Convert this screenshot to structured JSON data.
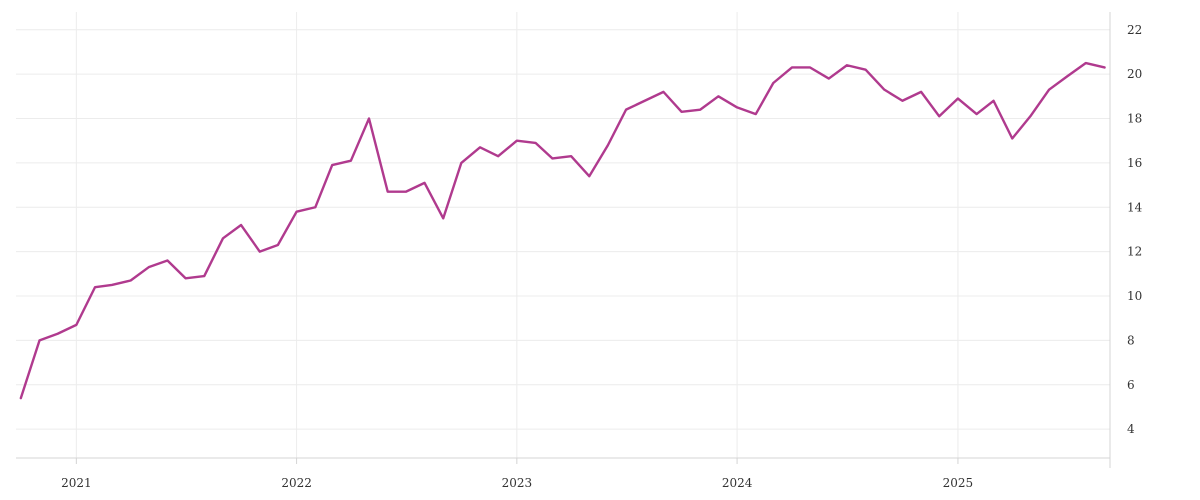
{
  "chart_data": {
    "type": "line",
    "title": "",
    "xlabel": "",
    "ylabel": "",
    "colors": {
      "line": "#b03a8e",
      "grid": "#ececec",
      "axis": "#d4d4d4",
      "text": "#333333"
    },
    "grid": true,
    "legend": "none",
    "y_axis_position": "right",
    "ylim": [
      2.7,
      22.8
    ],
    "xlim": [
      "2020-09-23",
      "2025-09-10"
    ],
    "x_ticks": [
      "2021-01-01",
      "2022-01-01",
      "2023-01-01",
      "2024-01-01",
      "2025-01-01"
    ],
    "x_tick_labels": [
      "2021",
      "2022",
      "2023",
      "2024",
      "2025"
    ],
    "y_ticks": [
      4,
      6,
      8,
      10,
      12,
      14,
      16,
      18,
      20,
      22
    ],
    "y_tick_labels": [
      "4",
      "6",
      "8",
      "10",
      "12",
      "14",
      "16",
      "18",
      "20",
      "22"
    ],
    "series": [
      {
        "x": [
          "2020-10-01",
          "2020-11-01",
          "2020-12-01",
          "2021-01-01",
          "2021-02-01",
          "2021-03-01",
          "2021-04-01",
          "2021-05-01",
          "2021-06-01",
          "2021-07-01",
          "2021-08-01",
          "2021-09-01",
          "2021-10-01",
          "2021-11-01",
          "2021-12-01",
          "2022-01-01",
          "2022-02-01",
          "2022-03-01",
          "2022-04-01",
          "2022-05-01",
          "2022-06-01",
          "2022-07-01",
          "2022-08-01",
          "2022-09-01",
          "2022-10-01",
          "2022-11-01",
          "2022-12-01",
          "2023-01-01",
          "2023-02-01",
          "2023-03-01",
          "2023-04-01",
          "2023-05-01",
          "2023-06-01",
          "2023-07-01",
          "2023-08-01",
          "2023-09-01",
          "2023-10-01",
          "2023-11-01",
          "2023-12-01",
          "2024-01-01",
          "2024-02-01",
          "2024-03-01",
          "2024-04-01",
          "2024-05-01",
          "2024-06-01",
          "2024-07-01",
          "2024-08-01",
          "2024-09-01",
          "2024-10-01",
          "2024-11-01",
          "2024-12-01",
          "2025-01-01",
          "2025-02-01",
          "2025-03-01",
          "2025-04-01",
          "2025-05-01",
          "2025-06-01",
          "2025-07-01",
          "2025-08-01",
          "2025-09-01"
        ],
        "values": [
          5.4,
          8.0,
          8.3,
          8.7,
          10.4,
          10.5,
          10.7,
          11.3,
          11.6,
          10.8,
          10.9,
          12.6,
          13.2,
          12.0,
          12.3,
          13.8,
          14.0,
          15.9,
          16.1,
          18.0,
          14.7,
          14.7,
          15.1,
          13.5,
          16.0,
          16.7,
          16.3,
          17.0,
          16.9,
          16.2,
          16.3,
          15.4,
          16.8,
          18.4,
          18.8,
          19.2,
          18.3,
          18.4,
          19.0,
          18.5,
          18.2,
          19.6,
          20.3,
          20.3,
          19.8,
          20.4,
          20.2,
          19.3,
          18.8,
          19.2,
          18.1,
          18.9,
          18.2,
          18.8,
          17.1,
          18.1,
          19.3,
          19.9,
          20.5,
          20.3
        ]
      }
    ]
  }
}
